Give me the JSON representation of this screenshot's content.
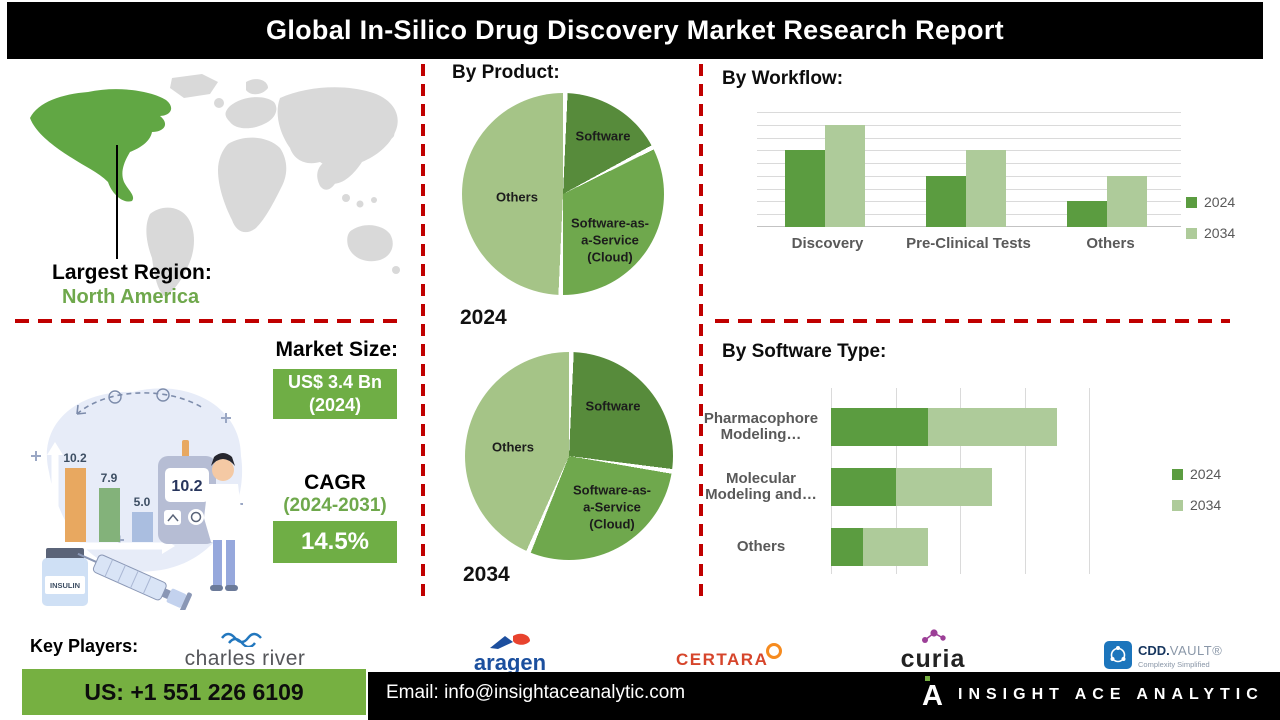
{
  "header": {
    "title": "Global In-Silico Drug Discovery Market Research Report"
  },
  "region": {
    "label": "Largest Region:",
    "value": "North America"
  },
  "map": {
    "highlight_color": "#61A744",
    "base_color": "#D9D9D9"
  },
  "market": {
    "size_label": "Market Size:",
    "size_value": "US$ 3.4 Bn",
    "size_year": "(2024)",
    "cagr_label": "CAGR",
    "cagr_period": "(2024-2031)",
    "cagr_value": "14.5%",
    "box_color": "#6FAE45"
  },
  "illustration": {
    "bar1": "10.2",
    "bar2": "7.9",
    "bar3": "5.0",
    "meter_reading": "10.2",
    "vial_label": "INSULIN"
  },
  "chart_data": [
    {
      "type": "pie",
      "title": "By  Product:",
      "year_label": "2024",
      "labels": [
        "Software",
        "Software-as-a-Service (Cloud)",
        "Others"
      ],
      "display_labels": [
        "Software",
        "Software-as-\na-Service\n(Cloud)",
        "Others"
      ],
      "values": [
        17,
        33,
        50
      ],
      "unit": "percent (estimated from slice angles)",
      "colors": [
        "#578B3B",
        "#6FA84D",
        "#A5C487"
      ]
    },
    {
      "type": "pie",
      "title": "By  Product:",
      "year_label": "2034",
      "labels": [
        "Software",
        "Software-as-a-Service (Cloud)",
        "Others"
      ],
      "display_labels": [
        "Software",
        "Software-as-\na-Service\n(Cloud)",
        "Others"
      ],
      "values": [
        27,
        29,
        44
      ],
      "unit": "percent (estimated from slice angles)",
      "colors": [
        "#578B3B",
        "#6FA84D",
        "#A5C487"
      ]
    },
    {
      "type": "bar",
      "title": "By Workflow:",
      "categories": [
        "Discovery",
        "Pre-Clinical Tests",
        "Others"
      ],
      "series": [
        {
          "name": "2024",
          "values": [
            6,
            4,
            2
          ]
        },
        {
          "name": "2034",
          "values": [
            8,
            6,
            4
          ]
        }
      ],
      "ylim": [
        0,
        9
      ],
      "grid": true,
      "legend_position": "right",
      "colors": [
        "#5B9C40",
        "#AECB9A"
      ],
      "note": "y-axis unlabeled; values estimated in relative gridline units"
    },
    {
      "type": "bar",
      "orientation": "horizontal",
      "stacked": true,
      "title": "By Software Type:",
      "categories": [
        "Pharmacophore Modeling…",
        "Molecular Modeling and…",
        "Others"
      ],
      "series": [
        {
          "name": "2024",
          "values": [
            1.5,
            1,
            0.5
          ]
        },
        {
          "name": "2034",
          "values": [
            2,
            1.5,
            1
          ]
        }
      ],
      "xlim": [
        0,
        4
      ],
      "grid": true,
      "legend_position": "right",
      "colors": [
        "#5B9C40",
        "#AECB9A"
      ],
      "note": "x-axis unlabeled; values estimated in relative gridline units"
    }
  ],
  "key_players": {
    "label": "Key Players:",
    "charles_river": "charles river",
    "aragen": "aragen",
    "certara": "CERTARA",
    "curia": "curia",
    "cdd_name": "CDD.",
    "cdd_vault": "VAULT®",
    "cdd_tagline": "Complexity Simplified"
  },
  "footer": {
    "phone": "US: +1 551 226 6109",
    "email": "Email: info@insightaceanalytic.com",
    "brand": "INSIGHT ACE ANALYTIC"
  },
  "theme": {
    "accent_red": "#C00000",
    "green_dark": "#578B3B",
    "green_mid": "#6FA84D",
    "green_light": "#A5C487",
    "footer_green": "#76B041"
  }
}
